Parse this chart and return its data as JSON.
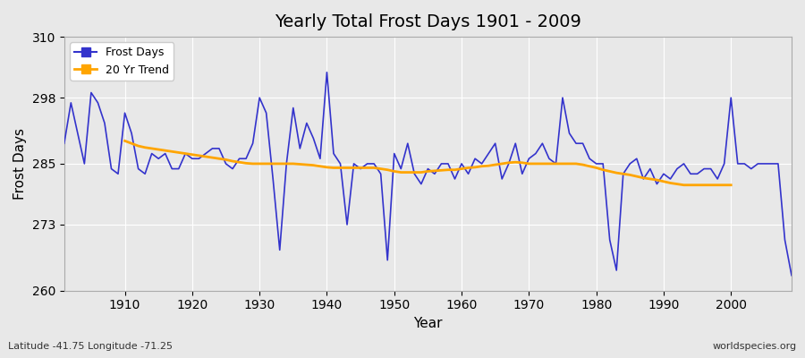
{
  "title": "Yearly Total Frost Days 1901 - 2009",
  "xlabel": "Year",
  "ylabel": "Frost Days",
  "lat_lon_label": "Latitude -41.75 Longitude -71.25",
  "watermark": "worldspecies.org",
  "frost_line_color": "#3333cc",
  "trend_line_color": "#FFA500",
  "background_color": "#e8e8e8",
  "grid_color": "#ffffff",
  "ylim": [
    260,
    310
  ],
  "yticks": [
    260,
    273,
    285,
    298,
    310
  ],
  "years": [
    1901,
    1902,
    1903,
    1904,
    1905,
    1906,
    1907,
    1908,
    1909,
    1910,
    1911,
    1912,
    1913,
    1914,
    1915,
    1916,
    1917,
    1918,
    1919,
    1920,
    1921,
    1922,
    1923,
    1924,
    1925,
    1926,
    1927,
    1928,
    1929,
    1930,
    1931,
    1932,
    1933,
    1934,
    1935,
    1936,
    1937,
    1938,
    1939,
    1940,
    1941,
    1942,
    1943,
    1944,
    1945,
    1946,
    1947,
    1948,
    1949,
    1950,
    1951,
    1952,
    1953,
    1954,
    1955,
    1956,
    1957,
    1958,
    1959,
    1960,
    1961,
    1962,
    1963,
    1964,
    1965,
    1966,
    1967,
    1968,
    1969,
    1970,
    1971,
    1972,
    1973,
    1974,
    1975,
    1976,
    1977,
    1978,
    1979,
    1980,
    1981,
    1982,
    1983,
    1984,
    1985,
    1986,
    1987,
    1988,
    1989,
    1990,
    1991,
    1992,
    1993,
    1994,
    1995,
    1996,
    1997,
    1998,
    1999,
    2000,
    2001,
    2002,
    2003,
    2004,
    2005,
    2006,
    2007,
    2008,
    2009
  ],
  "frost_days": [
    289,
    297,
    291,
    285,
    299,
    297,
    293,
    284,
    283,
    295,
    291,
    284,
    283,
    287,
    286,
    287,
    284,
    284,
    287,
    286,
    286,
    287,
    288,
    288,
    285,
    284,
    286,
    286,
    289,
    298,
    295,
    282,
    268,
    285,
    296,
    288,
    293,
    290,
    286,
    303,
    287,
    285,
    273,
    285,
    284,
    285,
    285,
    283,
    266,
    287,
    284,
    289,
    283,
    281,
    284,
    283,
    285,
    285,
    282,
    285,
    283,
    286,
    285,
    287,
    289,
    282,
    285,
    289,
    283,
    286,
    287,
    289,
    286,
    285,
    298,
    291,
    289,
    289,
    286,
    285,
    285,
    270,
    264,
    283,
    285,
    286,
    282,
    284,
    281,
    283,
    282,
    284,
    285,
    283,
    283,
    284,
    284,
    282,
    285,
    298,
    285,
    285,
    284,
    285,
    285,
    285,
    285,
    270,
    263
  ],
  "trend_years": [
    1910,
    1911,
    1912,
    1913,
    1914,
    1915,
    1916,
    1917,
    1918,
    1919,
    1920,
    1921,
    1922,
    1923,
    1924,
    1925,
    1926,
    1927,
    1928,
    1929,
    1930,
    1931,
    1932,
    1933,
    1934,
    1935,
    1936,
    1937,
    1938,
    1939,
    1940,
    1941,
    1942,
    1943,
    1944,
    1945,
    1946,
    1947,
    1948,
    1949,
    1950,
    1951,
    1952,
    1953,
    1954,
    1955,
    1956,
    1957,
    1958,
    1959,
    1960,
    1961,
    1962,
    1963,
    1964,
    1965,
    1966,
    1967,
    1968,
    1969,
    1970,
    1971,
    1972,
    1973,
    1974,
    1975,
    1976,
    1977,
    1978,
    1979,
    1980,
    1981,
    1982,
    1983,
    1984,
    1985,
    1986,
    1987,
    1988,
    1989,
    1990,
    1991,
    1992,
    1993,
    1994,
    1995,
    1996,
    1997,
    1998,
    1999,
    2000
  ],
  "trend_values": [
    289.5,
    289.0,
    288.5,
    288.2,
    288.0,
    287.8,
    287.6,
    287.4,
    287.2,
    287.0,
    286.8,
    286.6,
    286.4,
    286.2,
    286.0,
    285.8,
    285.5,
    285.3,
    285.1,
    285.0,
    285.0,
    285.0,
    285.0,
    285.0,
    285.0,
    285.0,
    284.9,
    284.8,
    284.7,
    284.5,
    284.3,
    284.2,
    284.2,
    284.2,
    284.2,
    284.2,
    284.2,
    284.2,
    284.0,
    283.8,
    283.5,
    283.3,
    283.3,
    283.3,
    283.3,
    283.5,
    283.6,
    283.7,
    283.8,
    283.8,
    284.0,
    284.2,
    284.3,
    284.5,
    284.6,
    284.8,
    285.0,
    285.2,
    285.3,
    285.2,
    285.0,
    285.0,
    285.0,
    285.0,
    285.0,
    285.0,
    285.0,
    285.0,
    284.8,
    284.5,
    284.2,
    283.8,
    283.5,
    283.2,
    283.0,
    282.8,
    282.5,
    282.2,
    282.0,
    281.8,
    281.5,
    281.2,
    281.0,
    280.8,
    280.8,
    280.8,
    280.8,
    280.8,
    280.8,
    280.8,
    280.8
  ]
}
